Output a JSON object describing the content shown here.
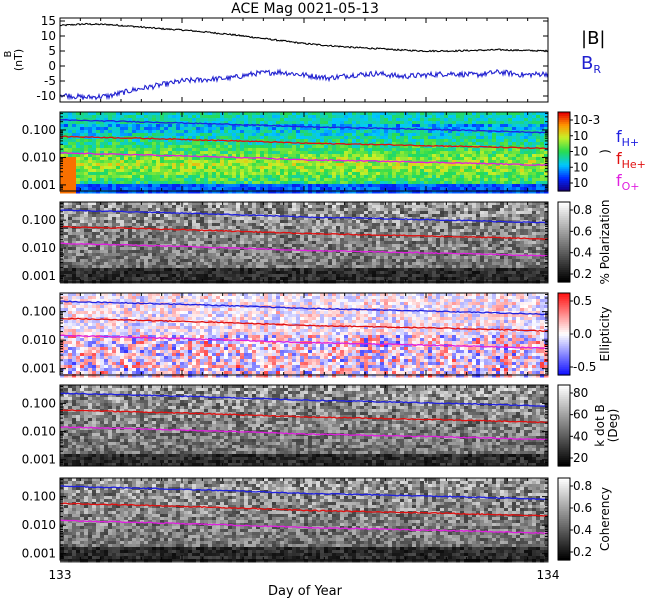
{
  "title": "ACE Mag 0021-05-13",
  "xlabel": "Day of Year",
  "x_ticks": [
    "133",
    "134"
  ],
  "colors": {
    "b_total": "#000000",
    "b_r": "#2020d0",
    "f_hplus": "#2020e0",
    "f_heplus": "#e01010",
    "f_oplus": "#e020e0"
  },
  "chart_data": [
    {
      "type": "line",
      "name": "magnetic-field",
      "xlim": [
        133,
        134
      ],
      "ylim": [
        -12,
        16
      ],
      "yticks": [
        "15",
        "10",
        "5",
        "0",
        "-5",
        "-10"
      ],
      "ylabel_line1": "B",
      "ylabel_line2": "(nT)",
      "legend": [
        {
          "label": "|B|",
          "sub": "",
          "color": "#000000"
        },
        {
          "label": "B",
          "sub": "R",
          "color": "#2020d0"
        }
      ],
      "series": [
        {
          "name": "|B|",
          "x": [
            133.0,
            133.05,
            133.1,
            133.15,
            133.2,
            133.25,
            133.3,
            133.35,
            133.4,
            133.45,
            133.5,
            133.55,
            133.6,
            133.65,
            133.7,
            133.75,
            133.8,
            133.85,
            133.9,
            133.95,
            134.0
          ],
          "values": [
            13.5,
            14,
            13.8,
            13.2,
            12.5,
            12,
            11.3,
            10.5,
            9.5,
            8.5,
            7.5,
            6.8,
            6.2,
            5.8,
            5.3,
            5,
            5,
            5.2,
            5.4,
            5.2,
            5
          ]
        },
        {
          "name": "B_R",
          "x": [
            133.0,
            133.05,
            133.1,
            133.15,
            133.2,
            133.25,
            133.3,
            133.35,
            133.4,
            133.45,
            133.5,
            133.55,
            133.6,
            133.65,
            133.7,
            133.75,
            133.8,
            133.85,
            133.9,
            133.95,
            134.0
          ],
          "values": [
            -9.5,
            -10.5,
            -10,
            -8,
            -6.5,
            -5,
            -4.5,
            -4,
            -2.5,
            -2,
            -3,
            -4,
            -3,
            -2.5,
            -3.5,
            -3,
            -2.5,
            -3,
            -2,
            -3,
            -2.5
          ]
        }
      ]
    },
    {
      "type": "heatmap",
      "name": "power-spectrum",
      "colormap": "rainbow",
      "ylim": [
        0.0006,
        0.45
      ],
      "yticks": [
        "0.100",
        "0.010",
        "0.001"
      ],
      "colorbar_ticks": [
        "10-3",
        "10",
        "10",
        "10",
        "10"
      ],
      "colorbar_label": ")",
      "legend": [
        {
          "label": "f",
          "sub": "H+",
          "color": "#2020e0"
        },
        {
          "label": "f",
          "sub": "He+",
          "color": "#e01010"
        },
        {
          "label": "f",
          "sub": "O+",
          "color": "#e020e0"
        }
      ],
      "lines": [
        {
          "name": "f_H+",
          "x": [
            133,
            133.5,
            134
          ],
          "values": [
            0.23,
            0.13,
            0.08
          ]
        },
        {
          "name": "f_He+",
          "x": [
            133,
            133.5,
            134
          ],
          "values": [
            0.058,
            0.033,
            0.021
          ]
        },
        {
          "name": "f_O+",
          "x": [
            133,
            133.5,
            134
          ],
          "values": [
            0.0145,
            0.0082,
            0.0052
          ]
        }
      ]
    },
    {
      "type": "heatmap",
      "name": "polarization",
      "colormap": "gray",
      "ylim": [
        0.0006,
        0.45
      ],
      "yticks": [
        "0.100",
        "0.010",
        "0.001"
      ],
      "colorbar_ticks": [
        "0.8",
        "0.6",
        "0.4",
        "0.2"
      ],
      "colorbar_label": "% Polarization",
      "lines": [
        {
          "name": "f_H+",
          "x": [
            133,
            133.5,
            134
          ],
          "values": [
            0.23,
            0.13,
            0.08
          ]
        },
        {
          "name": "f_He+",
          "x": [
            133,
            133.5,
            134
          ],
          "values": [
            0.058,
            0.033,
            0.021
          ]
        },
        {
          "name": "f_O+",
          "x": [
            133,
            133.5,
            134
          ],
          "values": [
            0.0145,
            0.0082,
            0.0052
          ]
        }
      ]
    },
    {
      "type": "heatmap",
      "name": "ellipticity",
      "colormap": "blue-white-red",
      "ylim": [
        0.0006,
        0.45
      ],
      "yticks": [
        "0.100",
        "0.010",
        "0.001"
      ],
      "colorbar_ticks": [
        "0.5",
        "0.0",
        "-0.5"
      ],
      "colorbar_label": "Ellipticity",
      "lines": [
        {
          "name": "f_H+",
          "x": [
            133,
            133.5,
            134
          ],
          "values": [
            0.23,
            0.13,
            0.08
          ]
        },
        {
          "name": "f_He+",
          "x": [
            133,
            133.5,
            134
          ],
          "values": [
            0.058,
            0.033,
            0.021
          ]
        },
        {
          "name": "f_O+",
          "x": [
            133,
            133.5,
            134
          ],
          "values": [
            0.0145,
            0.0082,
            0.0052
          ]
        }
      ]
    },
    {
      "type": "heatmap",
      "name": "wave-normal-angle",
      "colormap": "gray",
      "ylim": [
        0.0006,
        0.45
      ],
      "yticks": [
        "0.100",
        "0.010",
        "0.001"
      ],
      "colorbar_ticks": [
        "80",
        "60",
        "40",
        "20"
      ],
      "colorbar_label": "k dot B",
      "colorbar_label2": "(Deg)",
      "lines": [
        {
          "name": "f_H+",
          "x": [
            133,
            133.5,
            134
          ],
          "values": [
            0.23,
            0.13,
            0.08
          ]
        },
        {
          "name": "f_He+",
          "x": [
            133,
            133.5,
            134
          ],
          "values": [
            0.058,
            0.033,
            0.021
          ]
        },
        {
          "name": "f_O+",
          "x": [
            133,
            133.5,
            134
          ],
          "values": [
            0.0145,
            0.0082,
            0.0052
          ]
        }
      ]
    },
    {
      "type": "heatmap",
      "name": "coherency",
      "colormap": "gray",
      "ylim": [
        0.0006,
        0.45
      ],
      "yticks": [
        "0.100",
        "0.010",
        "0.001"
      ],
      "colorbar_ticks": [
        "0.8",
        "0.6",
        "0.4",
        "0.2"
      ],
      "colorbar_label": "Coherency",
      "lines": [
        {
          "name": "f_H+",
          "x": [
            133,
            133.5,
            134
          ],
          "values": [
            0.23,
            0.13,
            0.08
          ]
        },
        {
          "name": "f_He+",
          "x": [
            133,
            133.5,
            134
          ],
          "values": [
            0.058,
            0.033,
            0.021
          ]
        },
        {
          "name": "f_O+",
          "x": [
            133,
            133.5,
            134
          ],
          "values": [
            0.0145,
            0.0082,
            0.0052
          ]
        }
      ]
    }
  ]
}
